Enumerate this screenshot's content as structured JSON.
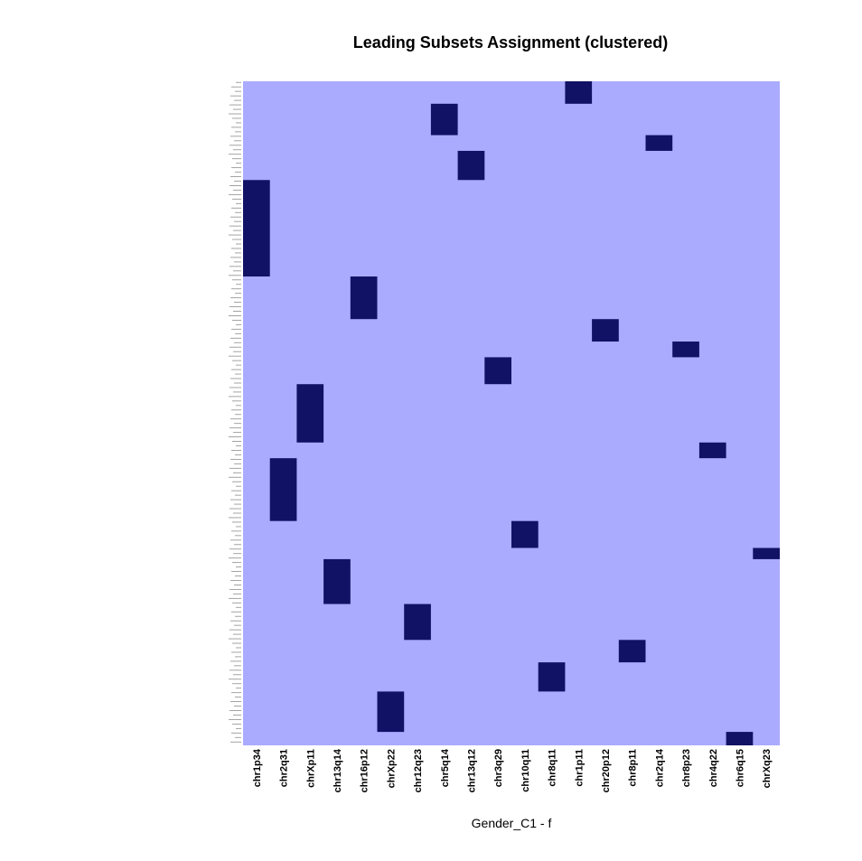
{
  "chart_data": {
    "type": "heatmap",
    "title": "Leading Subsets Assignment (clustered)",
    "xlabel": "Gender_C1 - f",
    "ylabel": "",
    "columns": [
      "chr1p34",
      "chr2q31",
      "chrXp11",
      "chr13q14",
      "chr16p12",
      "chrXp22",
      "chr12q23",
      "chr5q14",
      "chr13q12",
      "chr3q29",
      "chr10q11",
      "chr8q11",
      "chr1p11",
      "chr20p12",
      "chr8p11",
      "chr2q14",
      "chr8p23",
      "chr4q22",
      "chr6q15",
      "chrXq23"
    ],
    "n_rows": 296,
    "values": [
      0,
      1
    ],
    "colors": {
      "background": "#aaaaff",
      "member": "#111166"
    },
    "blocks": [
      {
        "column": "chr1p11",
        "row_start": 0,
        "row_end": 9
      },
      {
        "column": "chr5q14",
        "row_start": 10,
        "row_end": 23
      },
      {
        "column": "chr2q14",
        "row_start": 24,
        "row_end": 30
      },
      {
        "column": "chr13q12",
        "row_start": 31,
        "row_end": 43
      },
      {
        "column": "chr1p34",
        "row_start": 44,
        "row_end": 86
      },
      {
        "column": "chr16p12",
        "row_start": 87,
        "row_end": 105
      },
      {
        "column": "chr20p12",
        "row_start": 106,
        "row_end": 115
      },
      {
        "column": "chr8p23",
        "row_start": 116,
        "row_end": 122
      },
      {
        "column": "chr3q29",
        "row_start": 123,
        "row_end": 134
      },
      {
        "column": "chrXp11",
        "row_start": 135,
        "row_end": 160
      },
      {
        "column": "chr4q22",
        "row_start": 161,
        "row_end": 167
      },
      {
        "column": "chr2q31",
        "row_start": 168,
        "row_end": 195
      },
      {
        "column": "chr10q11",
        "row_start": 196,
        "row_end": 207
      },
      {
        "column": "chrXq23",
        "row_start": 208,
        "row_end": 212
      },
      {
        "column": "chr13q14",
        "row_start": 213,
        "row_end": 232
      },
      {
        "column": "chr12q23",
        "row_start": 233,
        "row_end": 248
      },
      {
        "column": "chr8p11",
        "row_start": 249,
        "row_end": 258
      },
      {
        "column": "chr8q11",
        "row_start": 259,
        "row_end": 271
      },
      {
        "column": "chrXp22",
        "row_start": 272,
        "row_end": 289
      },
      {
        "column": "chr6q15",
        "row_start": 290,
        "row_end": 295
      }
    ]
  }
}
